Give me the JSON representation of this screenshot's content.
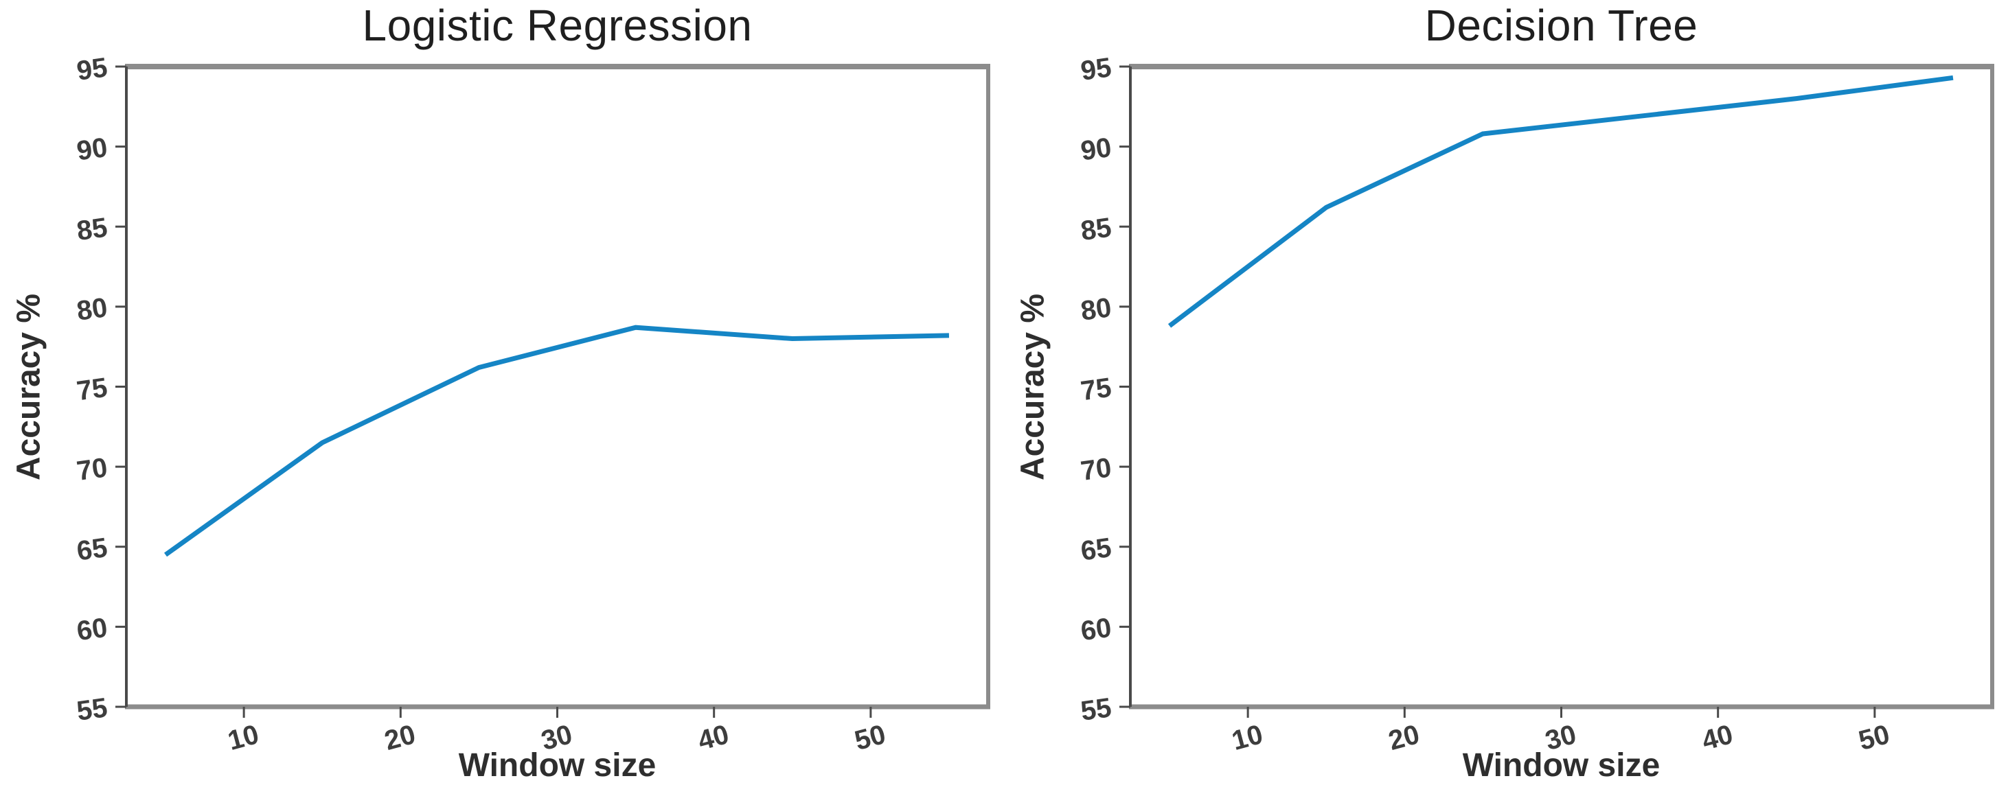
{
  "figure": {
    "background": "#ffffff"
  },
  "style": {
    "spine_color_left": "#4a4a4a",
    "spine_color_box": "#8c8c8c",
    "tick_color": "#4a4a4a",
    "tick_label_color": "#3d3d3d",
    "title_color": "#1f1f1f",
    "axis_label_color": "#2e2e2e"
  },
  "chart_data": [
    {
      "type": "line",
      "title": "Logistic Regression",
      "xlabel": "Window size",
      "ylabel": "Accuracy %",
      "x": [
        5,
        15,
        25,
        35,
        45,
        55
      ],
      "y": [
        64.5,
        71.5,
        76.2,
        78.7,
        78.0,
        78.2
      ],
      "xticks": [
        10,
        20,
        30,
        40,
        50
      ],
      "yticks": [
        55,
        60,
        65,
        70,
        75,
        80,
        85,
        90,
        95
      ],
      "xlim": [
        2.5,
        57.5
      ],
      "ylim": [
        55,
        95
      ],
      "line_color": "#1585c5",
      "line_width": 7,
      "grid": false,
      "legend": "none"
    },
    {
      "type": "line",
      "title": "Decision Tree",
      "xlabel": "Window size",
      "ylabel": "Accuracy %",
      "x": [
        5,
        15,
        25,
        35,
        45,
        55
      ],
      "y": [
        78.8,
        86.2,
        90.8,
        91.9,
        93.0,
        94.3
      ],
      "xticks": [
        10,
        20,
        30,
        40,
        50
      ],
      "yticks": [
        55,
        60,
        65,
        70,
        75,
        80,
        85,
        90,
        95
      ],
      "xlim": [
        2.5,
        57.5
      ],
      "ylim": [
        55,
        95
      ],
      "line_color": "#1585c5",
      "line_width": 7,
      "grid": false,
      "legend": "none"
    }
  ]
}
